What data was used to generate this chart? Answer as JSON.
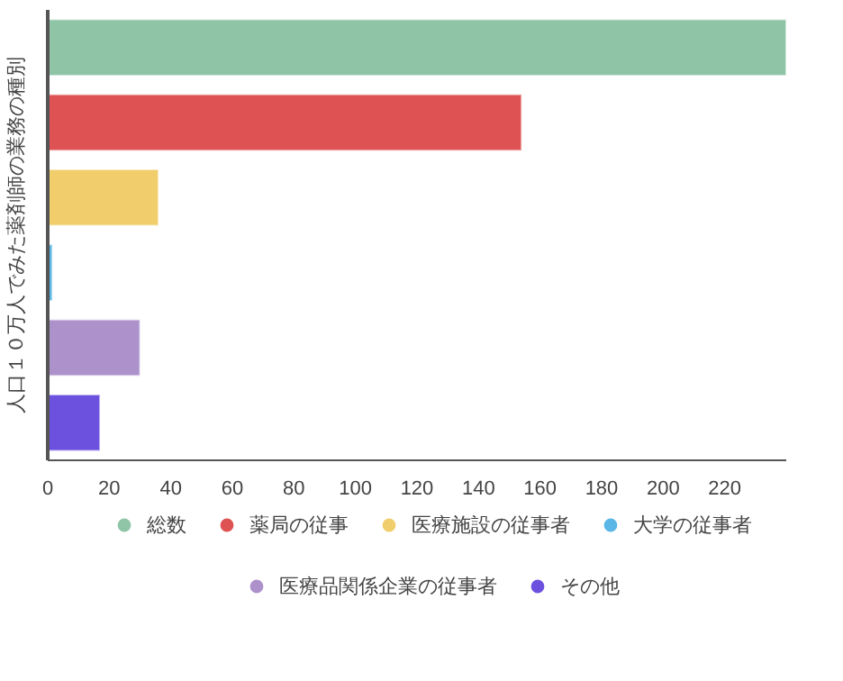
{
  "chart_data": {
    "type": "bar",
    "orientation": "horizontal",
    "ylabel": "人口１０万人でみた薬剤師の業務の種別",
    "categories": [
      null,
      null,
      null,
      null,
      null,
      null
    ],
    "series": [
      {
        "name": "総数",
        "color": "#8fc4a7",
        "values": [
          240,
          null,
          null,
          null,
          null,
          null
        ]
      },
      {
        "name": "薬局の従事",
        "color": "#de5254",
        "values": [
          null,
          154,
          null,
          null,
          null,
          null
        ]
      },
      {
        "name": "医療施設の従事者",
        "color": "#f1ce6b",
        "values": [
          null,
          null,
          36,
          null,
          null,
          null
        ]
      },
      {
        "name": "大学の従事者",
        "color": "#5ab7e6",
        "values": [
          null,
          null,
          null,
          1.5,
          null,
          null
        ]
      },
      {
        "name": "医療品関係企業の従事者",
        "color": "#ad91cb",
        "values": [
          null,
          null,
          null,
          null,
          30,
          null
        ]
      },
      {
        "name": "その他",
        "color": "#6c51df",
        "values": [
          null,
          null,
          null,
          null,
          null,
          17
        ]
      }
    ],
    "xlim": [
      0,
      240
    ],
    "xticks": [
      0,
      20,
      40,
      60,
      80,
      100,
      120,
      140,
      160,
      180,
      200,
      220
    ],
    "tick_labels": "x",
    "grid": false,
    "legend": "bottom"
  }
}
